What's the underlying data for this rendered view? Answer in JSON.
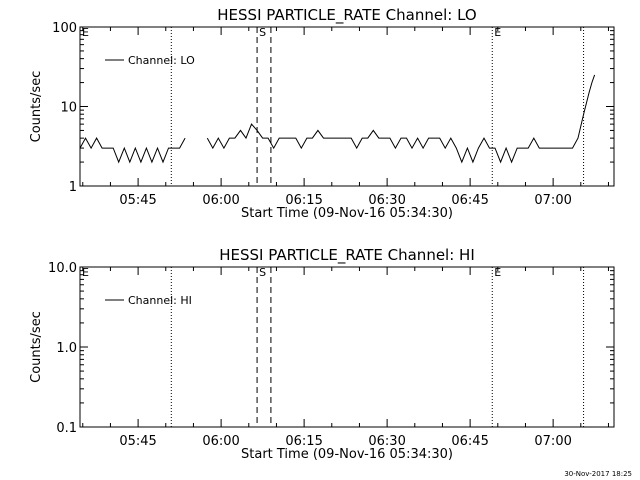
{
  "chart_data": [
    {
      "type": "line",
      "title": "HESSI PARTICLE_RATE Channel: LO",
      "xlabel": "Start Time (09-Nov-16 05:34:30)",
      "ylabel": "Counts/sec",
      "y_scale": "log",
      "ylim": [
        1,
        100
      ],
      "y_ticks": [
        1,
        10,
        100
      ],
      "y_tick_labels": [
        "1",
        "10",
        "100"
      ],
      "xlim_minutes": [
        0,
        96.5
      ],
      "x_ticks_minutes": [
        10.5,
        25.5,
        40.5,
        55.5,
        70.5,
        85.5
      ],
      "x_tick_labels": [
        "05:45",
        "06:00",
        "06:15",
        "06:30",
        "06:45",
        "07:00"
      ],
      "legend": "top-left",
      "series": [
        {
          "name": "Channel: LO",
          "x": [
            0,
            1,
            2,
            3,
            4,
            5,
            6,
            7,
            8,
            9,
            10,
            11,
            12,
            13,
            14,
            15,
            16,
            17,
            18,
            19,
            20,
            21,
            22,
            23,
            24,
            25,
            26,
            27,
            28,
            29,
            30,
            31,
            32,
            33,
            34,
            35,
            36,
            37,
            38,
            39,
            40,
            41,
            42,
            43,
            44,
            45,
            46,
            47,
            48,
            49,
            50,
            51,
            52,
            53,
            54,
            55,
            56,
            57,
            58,
            59,
            60,
            61,
            62,
            63,
            64,
            65,
            66,
            67,
            68,
            69,
            70,
            71,
            72,
            73,
            74,
            75,
            76,
            77,
            78,
            79,
            80,
            81,
            82,
            83,
            84,
            85,
            86,
            87,
            88,
            89,
            90,
            91,
            92,
            92.5,
            93
          ],
          "y": [
            3,
            4,
            3,
            4,
            3,
            3,
            3,
            2,
            3,
            2,
            3,
            2,
            3,
            2,
            3,
            2,
            3,
            3,
            3,
            4,
            null,
            null,
            null,
            4,
            3,
            4,
            3,
            4,
            4,
            5,
            4,
            6,
            5,
            4,
            4,
            3,
            4,
            4,
            4,
            4,
            3,
            4,
            4,
            5,
            4,
            4,
            4,
            4,
            4,
            4,
            3,
            4,
            4,
            5,
            4,
            4,
            4,
            3,
            4,
            4,
            3,
            4,
            3,
            4,
            4,
            4,
            3,
            4,
            3,
            2,
            3,
            2,
            3,
            4,
            3,
            3,
            2,
            3,
            2,
            3,
            3,
            3,
            4,
            3,
            3,
            3,
            3,
            3,
            3,
            3,
            4,
            8,
            15,
            20,
            25
          ]
        }
      ],
      "vlines": [
        {
          "x": 16.5,
          "style": "dotted",
          "label": ""
        },
        {
          "x": 32.0,
          "style": "dashed",
          "label": "S"
        },
        {
          "x": 34.5,
          "style": "dashed",
          "label": ""
        },
        {
          "x": 74.5,
          "style": "dotted",
          "label": "E"
        },
        {
          "x": 91.0,
          "style": "dotted",
          "label": ""
        }
      ],
      "left_marker": "E"
    },
    {
      "type": "line",
      "title": "HESSI PARTICLE_RATE Channel: HI",
      "xlabel": "Start Time (09-Nov-16 05:34:30)",
      "ylabel": "Counts/sec",
      "y_scale": "log",
      "ylim": [
        0.1,
        10
      ],
      "y_ticks": [
        0.1,
        1,
        10
      ],
      "y_tick_labels": [
        "0.1",
        "1.0",
        "10.0"
      ],
      "xlim_minutes": [
        0,
        96.5
      ],
      "x_ticks_minutes": [
        10.5,
        25.5,
        40.5,
        55.5,
        70.5,
        85.5
      ],
      "x_tick_labels": [
        "05:45",
        "06:00",
        "06:15",
        "06:30",
        "06:45",
        "07:00"
      ],
      "legend": "top-left",
      "series": [
        {
          "name": "Channel: HI",
          "x": [],
          "y": []
        }
      ],
      "vlines": [
        {
          "x": 16.5,
          "style": "dotted",
          "label": ""
        },
        {
          "x": 32.0,
          "style": "dashed",
          "label": "S"
        },
        {
          "x": 34.5,
          "style": "dashed",
          "label": ""
        },
        {
          "x": 74.5,
          "style": "dotted",
          "label": "E"
        },
        {
          "x": 91.0,
          "style": "dotted",
          "label": ""
        }
      ],
      "left_marker": "E"
    }
  ],
  "footer": {
    "timestamp": "30-Nov-2017 18:25"
  }
}
